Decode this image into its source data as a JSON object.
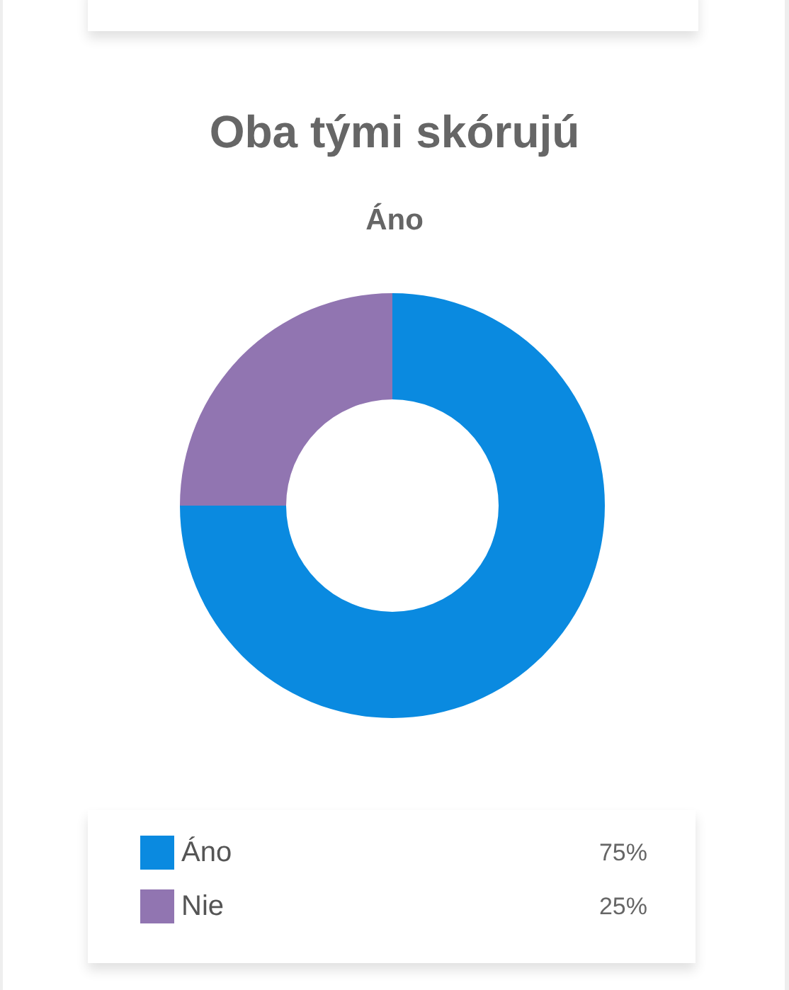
{
  "chart_data": {
    "type": "donut",
    "title": "Oba tými skórujú",
    "subtitle": "Áno",
    "categories": [
      "Áno",
      "Nie"
    ],
    "values": [
      75,
      25
    ],
    "colors": [
      "#0a8ae0",
      "#9175b1"
    ],
    "value_labels": [
      "75%",
      "25%"
    ],
    "legend": "bottom"
  }
}
